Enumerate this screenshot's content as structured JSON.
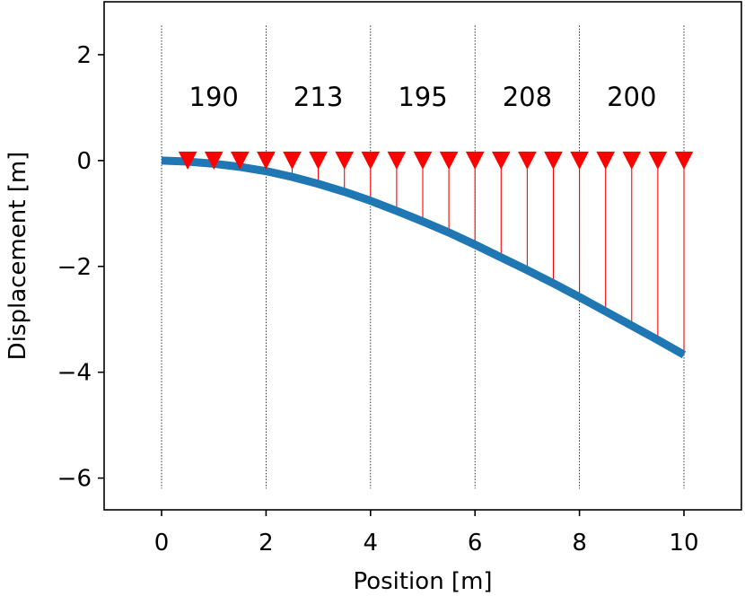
{
  "chart_data": {
    "type": "line",
    "xlabel": "Position [m]",
    "ylabel": "Displacement [m]",
    "xlim": [
      -1.1,
      11.1
    ],
    "ylim": [
      -6.6,
      3.0
    ],
    "x_ticks": [
      0,
      2,
      4,
      6,
      8,
      10
    ],
    "x_tick_labels": [
      "0",
      "2",
      "4",
      "6",
      "8",
      "10"
    ],
    "y_ticks": [
      2,
      0,
      -2,
      -4,
      -6
    ],
    "y_tick_labels": [
      "2",
      "0",
      "−2",
      "−4",
      "−6"
    ],
    "grid": false,
    "segment_boundaries": [
      0,
      2,
      4,
      6,
      8,
      10
    ],
    "segment_boundary_y_range": [
      -6.2,
      2.55
    ],
    "segment_labels": [
      "190",
      "213",
      "195",
      "208",
      "200"
    ],
    "segment_label_y": 1.2,
    "series": [
      {
        "kind": "displacement",
        "color": "#1f77b4",
        "x": [
          0,
          0.5,
          1,
          1.5,
          2,
          2.5,
          3,
          3.5,
          4,
          4.5,
          5,
          5.5,
          6,
          6.5,
          7,
          7.5,
          8,
          8.5,
          9,
          9.5,
          10
        ],
        "y": [
          0,
          -0.02,
          -0.06,
          -0.12,
          -0.2,
          -0.31,
          -0.44,
          -0.59,
          -0.76,
          -0.95,
          -1.15,
          -1.36,
          -1.59,
          -1.83,
          -2.07,
          -2.32,
          -2.58,
          -2.85,
          -3.12,
          -3.39,
          -3.67
        ]
      },
      {
        "kind": "load-markers",
        "color": "#ff0000",
        "marker": "down-triangle",
        "y": 0,
        "x": [
          0.5,
          1,
          1.5,
          2,
          2.5,
          3,
          3.5,
          4,
          4.5,
          5,
          5.5,
          6,
          6.5,
          7,
          7.5,
          8,
          8.5,
          9,
          9.5,
          10
        ]
      }
    ]
  }
}
